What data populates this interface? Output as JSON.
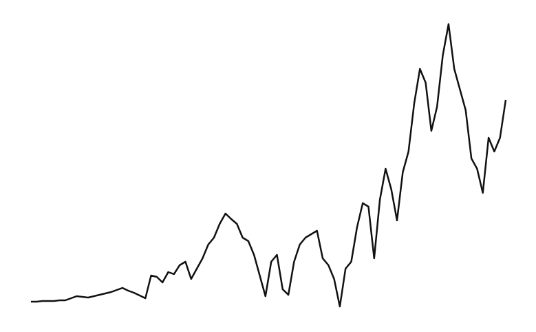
{
  "chart_data": {
    "type": "line",
    "color": "#111111",
    "values": [
      44,
      44,
      45,
      45,
      45,
      46,
      46,
      49,
      52,
      51,
      50,
      52,
      54,
      56,
      58,
      61,
      64,
      60,
      57,
      53,
      49,
      82,
      80,
      72,
      87,
      84,
      97,
      102,
      77,
      92,
      107,
      127,
      137,
      157,
      172,
      164,
      157,
      137,
      132,
      112,
      82,
      52,
      102,
      112,
      62,
      54,
      102,
      127,
      137,
      142,
      147,
      107,
      97,
      77,
      37,
      92,
      102,
      152,
      187,
      182,
      107,
      192,
      237,
      207,
      162,
      232,
      262,
      332,
      382,
      362,
      292,
      327,
      402,
      447,
      382,
      352,
      322,
      252,
      237,
      202,
      282,
      262,
      282,
      337
    ]
  }
}
